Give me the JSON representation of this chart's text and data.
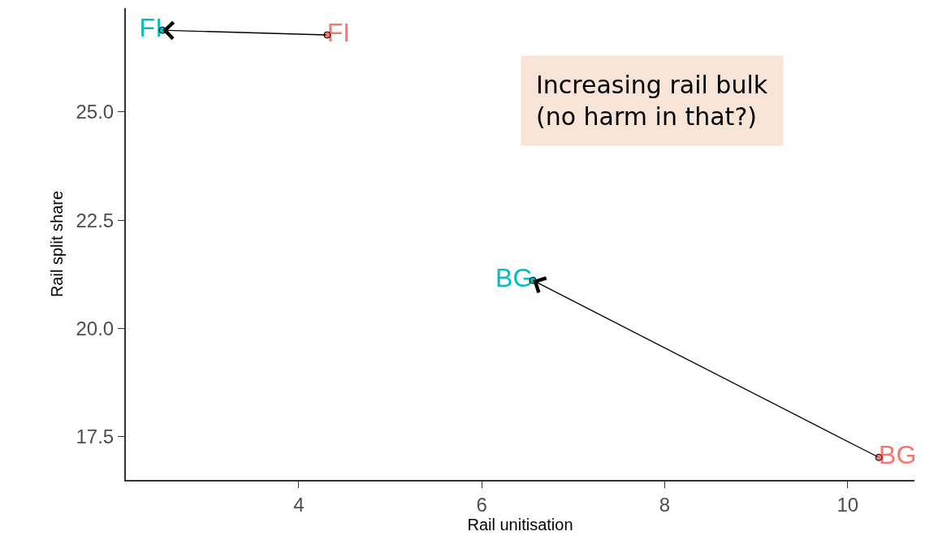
{
  "chart_data": {
    "type": "scatter",
    "xlabel": "Rail unitisation",
    "ylabel": "Rail split share",
    "xlim": [
      2.11,
      10.73
    ],
    "xticks": [
      4,
      6,
      8,
      10
    ],
    "ylim": [
      16.5,
      27.4
    ],
    "yticks": [
      17.5,
      {
        "value": 20,
        "label": "20.0"
      },
      22.5,
      {
        "value": 25,
        "label": "25.0"
      }
    ],
    "series": [
      {
        "color": "#f8766d",
        "x": [
          4.31,
          10.34
        ],
        "values": [
          26.78,
          17.02
        ],
        "value_labels": [
          "FI",
          "BG"
        ]
      },
      {
        "color": "#00bfc4",
        "x": [
          2.51,
          6.56
        ],
        "values": [
          26.89,
          21.11
        ],
        "value_labels": [
          "FI",
          "BG"
        ]
      }
    ],
    "annotations": [
      "Increasing rail bulk\n(no harm in that?)"
    ],
    "marker": "circle",
    "grid": false
  }
}
